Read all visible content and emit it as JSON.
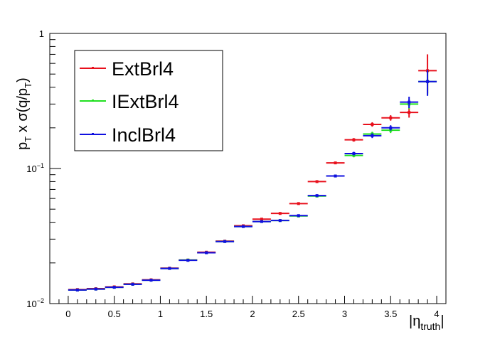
{
  "chart_data": {
    "type": "scatter",
    "title": "",
    "xlabel": "|η_truth|",
    "ylabel": "p_T x σ(q/p_T)",
    "xlim": [
      -0.2,
      4.1
    ],
    "ylim": [
      0.01,
      1
    ],
    "yscale": "log",
    "grid": false,
    "legend_position": "top-left",
    "x_tick_labels": [
      "0",
      "0.5",
      "1",
      "1.5",
      "2",
      "2.5",
      "3",
      "3.5",
      "4"
    ],
    "y_tick_labels": [
      {
        "base": "10",
        "exp": "−2",
        "value": 0.01
      },
      {
        "base": "10",
        "exp": "−1",
        "value": 0.1
      },
      {
        "base": "1",
        "exp": "",
        "value": 1
      }
    ],
    "bin_half_width": 0.1,
    "series": [
      {
        "name": "ExtBrl4",
        "color": "#e8101c",
        "x": [
          0.1,
          0.3,
          0.5,
          0.7,
          0.9,
          1.1,
          1.3,
          1.5,
          1.7,
          1.9,
          2.1,
          2.3,
          2.5,
          2.7,
          2.9,
          3.1,
          3.3,
          3.5,
          3.7,
          3.9
        ],
        "y": [
          0.0127,
          0.0129,
          0.0133,
          0.014,
          0.015,
          0.0183,
          0.021,
          0.024,
          0.029,
          0.0377,
          0.0422,
          0.0465,
          0.055,
          0.08,
          0.11,
          0.163,
          0.212,
          0.237,
          0.26,
          0.53
        ],
        "yerr": [
          0.0002,
          0.0002,
          0.0002,
          0.0003,
          0.0003,
          0.0004,
          0.0004,
          0.0005,
          0.0006,
          0.0008,
          0.0008,
          0.0009,
          0.001,
          0.0015,
          0.002,
          0.005,
          0.008,
          0.011,
          0.022,
          0.17
        ]
      },
      {
        "name": "IExtBrl4",
        "color": "#20e020",
        "x": [
          0.1,
          0.3,
          0.5,
          0.7,
          0.9,
          1.1,
          1.3,
          1.5,
          1.7,
          1.9,
          2.1,
          2.3,
          2.5,
          2.7,
          2.9,
          3.1,
          3.3,
          3.5,
          3.7,
          3.9
        ],
        "y": [
          0.0126,
          0.0128,
          0.0132,
          0.0139,
          0.0149,
          0.0182,
          0.021,
          0.0238,
          0.0288,
          0.0372,
          0.0405,
          0.0412,
          0.0445,
          0.0625,
          0.088,
          0.125,
          0.18,
          0.192,
          0.3,
          0.44
        ],
        "yerr": [
          0.0002,
          0.0002,
          0.0002,
          0.0003,
          0.0003,
          0.0004,
          0.0004,
          0.0005,
          0.0006,
          0.0008,
          0.0008,
          0.0008,
          0.0009,
          0.0013,
          0.0018,
          0.004,
          0.007,
          0.009,
          0.025,
          0.09
        ]
      },
      {
        "name": "InclBrl4",
        "color": "#1010e0",
        "x": [
          0.1,
          0.3,
          0.5,
          0.7,
          0.9,
          1.1,
          1.3,
          1.5,
          1.7,
          1.9,
          2.1,
          2.3,
          2.5,
          2.7,
          2.9,
          3.1,
          3.3,
          3.5,
          3.7,
          3.9
        ],
        "y": [
          0.0126,
          0.0128,
          0.0132,
          0.0139,
          0.0149,
          0.0182,
          0.0209,
          0.0238,
          0.0288,
          0.0372,
          0.0405,
          0.0412,
          0.0448,
          0.063,
          0.088,
          0.129,
          0.175,
          0.2,
          0.31,
          0.44
        ],
        "yerr": [
          0.0002,
          0.0002,
          0.0002,
          0.0003,
          0.0003,
          0.0004,
          0.0004,
          0.0005,
          0.0006,
          0.0008,
          0.0008,
          0.0008,
          0.0009,
          0.0013,
          0.0018,
          0.004,
          0.007,
          0.009,
          0.03,
          0.095
        ]
      }
    ]
  }
}
